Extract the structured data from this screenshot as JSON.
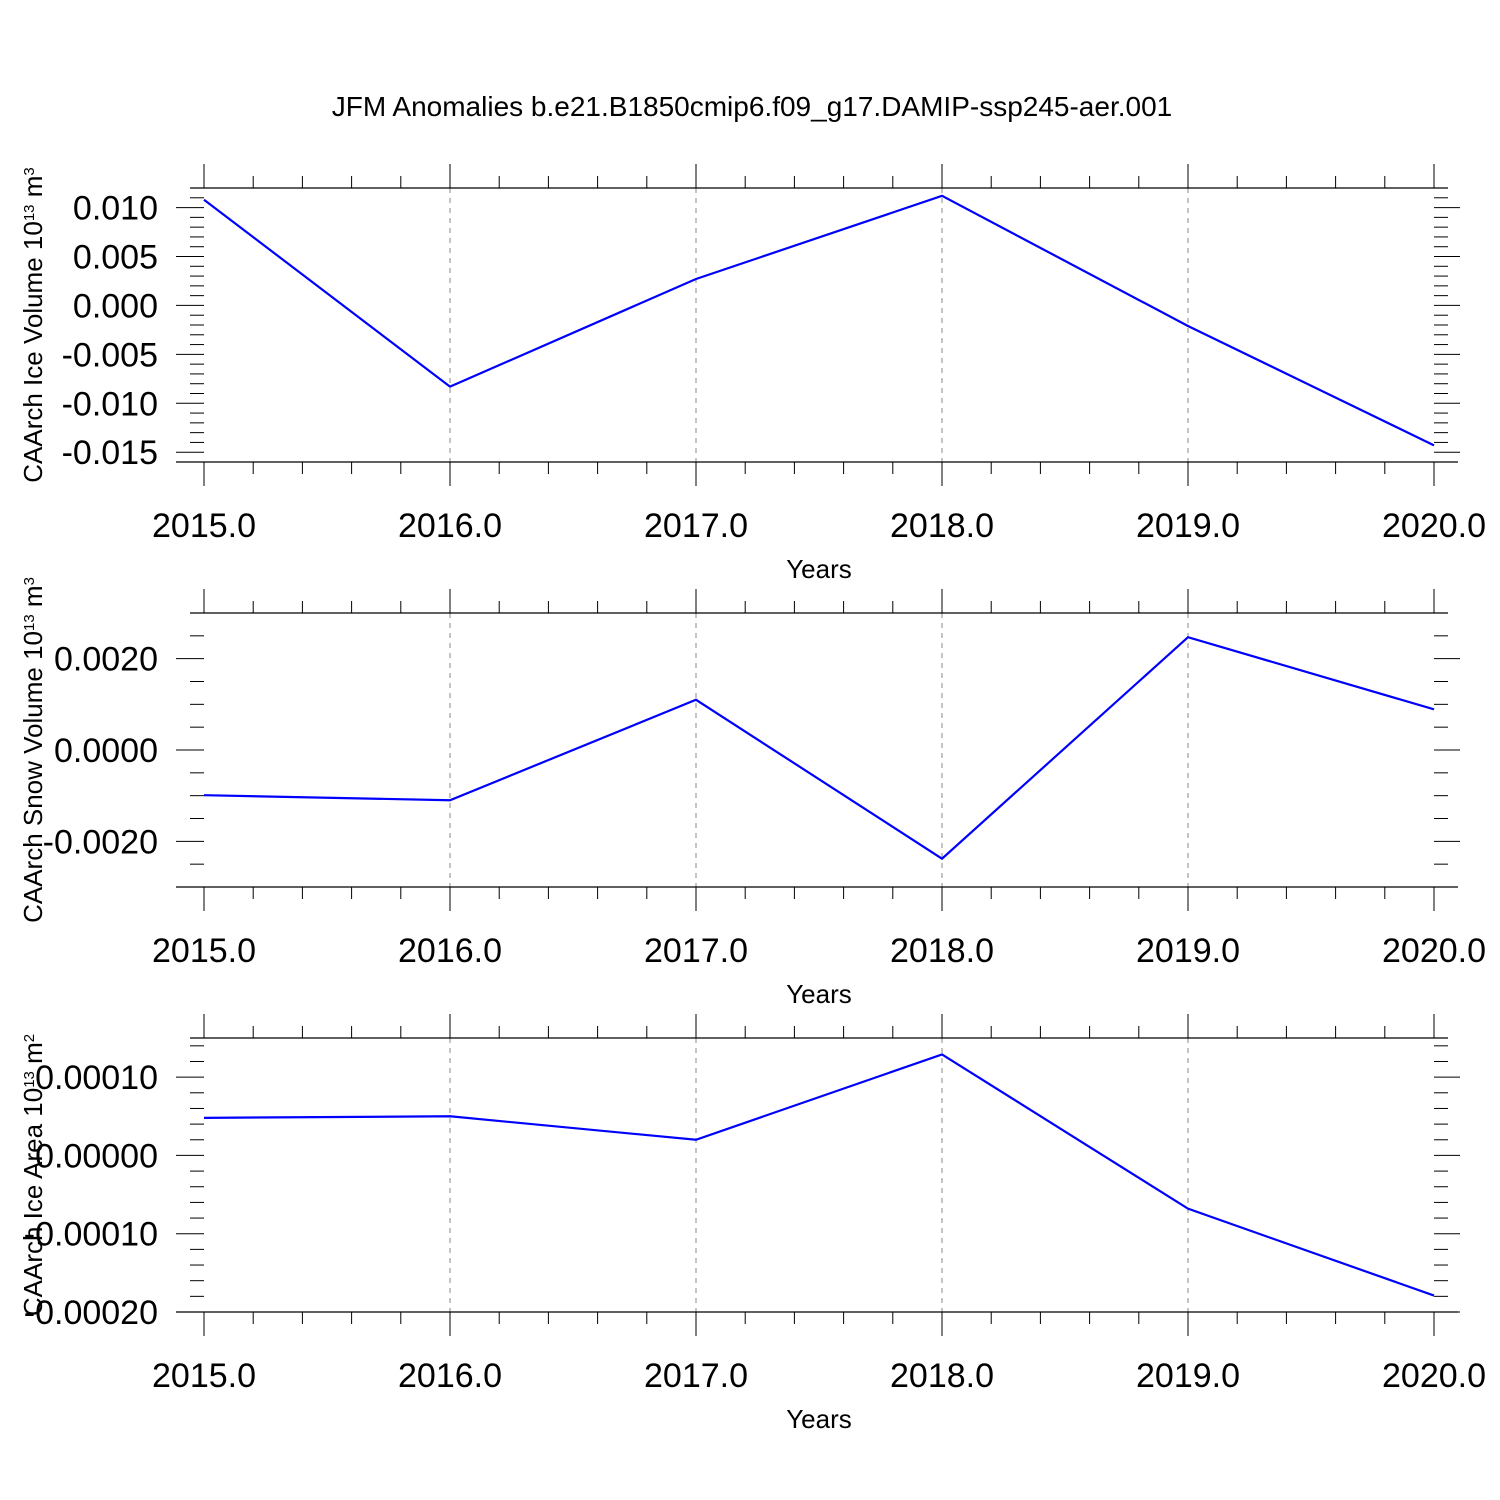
{
  "title": "JFM Anomalies b.e21.B1850cmip6.f09_g17.DAMIP-ssp245-aer.001",
  "colors": {
    "line": "#0000ff",
    "axis": "#000000",
    "grid": "#888888"
  },
  "chart_data": [
    {
      "type": "line",
      "xlabel": "Years",
      "ylabel": {
        "main": "CAArch Ice Volume 10",
        "exp": "13",
        "unit": " m",
        "unit_exp": "3"
      },
      "x": [
        2015,
        2016,
        2017,
        2018,
        2019,
        2020
      ],
      "xlim": [
        2015,
        2020
      ],
      "xticks": [
        "2015.0",
        "2016.0",
        "2017.0",
        "2018.0",
        "2019.0",
        "2020.0"
      ],
      "ylim": [
        -0.016,
        0.012
      ],
      "yticks": [
        0.01,
        0.005,
        0.0,
        -0.005,
        -0.01,
        -0.015
      ],
      "ytick_labels": [
        "0.010",
        "0.005",
        "0.000",
        "-0.005",
        "-0.010",
        "-0.015"
      ],
      "y_minor_step": 0.001,
      "grid": "vertical dashed",
      "series": [
        {
          "values": [
            0.0108,
            -0.0083,
            0.0027,
            0.0112,
            -0.0021,
            -0.0143
          ]
        }
      ]
    },
    {
      "type": "line",
      "xlabel": "Years",
      "ylabel": {
        "main": "CAArch Snow Volume 10",
        "exp": "13",
        "unit": " m",
        "unit_exp": "3"
      },
      "x": [
        2015,
        2016,
        2017,
        2018,
        2019,
        2020
      ],
      "xlim": [
        2015,
        2020
      ],
      "xticks": [
        "2015.0",
        "2016.0",
        "2017.0",
        "2018.0",
        "2019.0",
        "2020.0"
      ],
      "ylim": [
        -0.003,
        0.003
      ],
      "yticks": [
        0.002,
        0.0,
        -0.002
      ],
      "ytick_labels": [
        "0.0020",
        "0.0000",
        "-0.0020"
      ],
      "y_minor_step": 0.0005,
      "grid": "vertical dashed",
      "series": [
        {
          "values": [
            -0.00099,
            -0.0011,
            0.0011,
            -0.00238,
            0.00247,
            0.00089
          ]
        }
      ]
    },
    {
      "type": "line",
      "xlabel": "Years",
      "ylabel": {
        "main": "CAArch Ice Area 10",
        "exp": "13",
        "unit": " m",
        "unit_exp": "2"
      },
      "x": [
        2015,
        2016,
        2017,
        2018,
        2019,
        2020
      ],
      "xlim": [
        2015,
        2020
      ],
      "xticks": [
        "2015.0",
        "2016.0",
        "2017.0",
        "2018.0",
        "2019.0",
        "2020.0"
      ],
      "ylim": [
        -0.0002,
        0.00015
      ],
      "yticks": [
        0.0001,
        0.0,
        -0.0001,
        -0.0002
      ],
      "ytick_labels": [
        "0.00010",
        "0.00000",
        "-0.00010",
        "-0.00020"
      ],
      "y_minor_step": 2e-05,
      "grid": "vertical dashed",
      "series": [
        {
          "values": [
            4.8e-05,
            5e-05,
            2e-05,
            0.000129,
            -6.8e-05,
            -0.000179
          ]
        }
      ]
    }
  ]
}
